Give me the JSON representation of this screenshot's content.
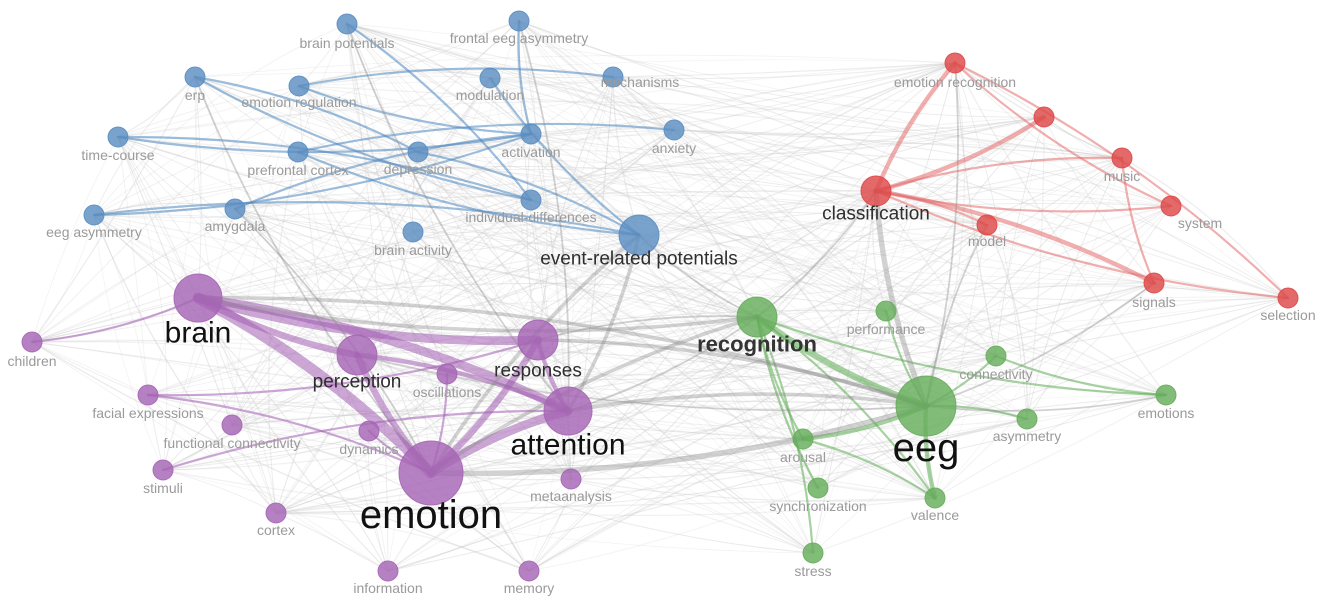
{
  "clusters": {
    "blue": {
      "color": "#5b8ec1",
      "edge_color": "#4d87bf"
    },
    "purple": {
      "color": "#a665b5",
      "edge_color": "#a25db2"
    },
    "green": {
      "color": "#67ad5b",
      "edge_color": "#5dab52"
    },
    "red": {
      "color": "#de4848",
      "edge_color": "#e46c6c"
    }
  },
  "nodes": [
    {
      "id": "brain_potentials",
      "label": "brain potentials",
      "cluster": "blue",
      "weight": 2,
      "label_emphasis": "minor"
    },
    {
      "id": "frontal_eeg_asymmetry",
      "label": "frontal eeg asymmetry",
      "cluster": "blue",
      "weight": 2,
      "label_emphasis": "minor"
    },
    {
      "id": "erp",
      "label": "erp",
      "cluster": "blue",
      "weight": 2,
      "label_emphasis": "minor"
    },
    {
      "id": "emotion_regulation",
      "label": "emotion regulation",
      "cluster": "blue",
      "weight": 2,
      "label_emphasis": "minor"
    },
    {
      "id": "modulation",
      "label": "modulation",
      "cluster": "blue",
      "weight": 2,
      "label_emphasis": "minor"
    },
    {
      "id": "mechanisms",
      "label": "mechanisms",
      "cluster": "blue",
      "weight": 2,
      "label_emphasis": "minor"
    },
    {
      "id": "time_course",
      "label": "time-course",
      "cluster": "blue",
      "weight": 2,
      "label_emphasis": "minor"
    },
    {
      "id": "prefrontal_cortex",
      "label": "prefrontal cortex",
      "cluster": "blue",
      "weight": 2,
      "label_emphasis": "minor"
    },
    {
      "id": "depression",
      "label": "depression",
      "cluster": "blue",
      "weight": 2,
      "label_emphasis": "minor"
    },
    {
      "id": "activation",
      "label": "activation",
      "cluster": "blue",
      "weight": 2,
      "label_emphasis": "minor"
    },
    {
      "id": "anxiety",
      "label": "anxiety",
      "cluster": "blue",
      "weight": 2,
      "label_emphasis": "minor"
    },
    {
      "id": "individual_differences",
      "label": "individual-differences",
      "cluster": "blue",
      "weight": 2,
      "label_emphasis": "minor"
    },
    {
      "id": "eeg_asymmetry",
      "label": "eeg asymmetry",
      "cluster": "blue",
      "weight": 2,
      "label_emphasis": "minor"
    },
    {
      "id": "amygdala",
      "label": "amygdala",
      "cluster": "blue",
      "weight": 2,
      "label_emphasis": "minor"
    },
    {
      "id": "brain_activity",
      "label": "brain activity",
      "cluster": "blue",
      "weight": 2,
      "label_emphasis": "minor"
    },
    {
      "id": "event_related_potentials",
      "label": "event-related potentials",
      "cluster": "blue",
      "weight": 4,
      "label_emphasis": "medium"
    },
    {
      "id": "emotion_recognition",
      "label": "emotion recognition",
      "cluster": "red",
      "weight": 2,
      "label_emphasis": "minor"
    },
    {
      "id": "red_unlabeled",
      "label": "",
      "cluster": "red",
      "weight": 2,
      "label_emphasis": "minor"
    },
    {
      "id": "music",
      "label": "music",
      "cluster": "red",
      "weight": 2,
      "label_emphasis": "minor"
    },
    {
      "id": "classification",
      "label": "classification",
      "cluster": "red",
      "weight": 3,
      "label_emphasis": "medium"
    },
    {
      "id": "system",
      "label": "system",
      "cluster": "red",
      "weight": 2,
      "label_emphasis": "minor"
    },
    {
      "id": "model",
      "label": "model",
      "cluster": "red",
      "weight": 2,
      "label_emphasis": "minor"
    },
    {
      "id": "signals",
      "label": "signals",
      "cluster": "red",
      "weight": 2,
      "label_emphasis": "minor"
    },
    {
      "id": "selection",
      "label": "selection",
      "cluster": "red",
      "weight": 2,
      "label_emphasis": "minor"
    },
    {
      "id": "brain",
      "label": "brain",
      "cluster": "purple",
      "weight": 5,
      "label_emphasis": "large"
    },
    {
      "id": "children",
      "label": "children",
      "cluster": "purple",
      "weight": 2,
      "label_emphasis": "minor"
    },
    {
      "id": "perception",
      "label": "perception",
      "cluster": "purple",
      "weight": 4,
      "label_emphasis": "medium"
    },
    {
      "id": "responses",
      "label": "responses",
      "cluster": "purple",
      "weight": 4,
      "label_emphasis": "medium"
    },
    {
      "id": "oscillations",
      "label": "oscillations",
      "cluster": "purple",
      "weight": 2,
      "label_emphasis": "minor"
    },
    {
      "id": "facial_expressions",
      "label": "facial expressions",
      "cluster": "purple",
      "weight": 2,
      "label_emphasis": "minor"
    },
    {
      "id": "functional_connectivity",
      "label": "functional connectivity",
      "cluster": "purple",
      "weight": 2,
      "label_emphasis": "minor"
    },
    {
      "id": "attention",
      "label": "attention",
      "cluster": "purple",
      "weight": 5,
      "label_emphasis": "large"
    },
    {
      "id": "dynamics",
      "label": "dynamics",
      "cluster": "purple",
      "weight": 2,
      "label_emphasis": "minor"
    },
    {
      "id": "stimuli",
      "label": "stimuli",
      "cluster": "purple",
      "weight": 2,
      "label_emphasis": "minor"
    },
    {
      "id": "emotion",
      "label": "emotion",
      "cluster": "purple",
      "weight": 7,
      "label_emphasis": "huge"
    },
    {
      "id": "metaanalysis",
      "label": "metaanalysis",
      "cluster": "purple",
      "weight": 2,
      "label_emphasis": "minor"
    },
    {
      "id": "cortex",
      "label": "cortex",
      "cluster": "purple",
      "weight": 2,
      "label_emphasis": "minor"
    },
    {
      "id": "information",
      "label": "information",
      "cluster": "purple",
      "weight": 2,
      "label_emphasis": "minor"
    },
    {
      "id": "memory",
      "label": "memory",
      "cluster": "purple",
      "weight": 2,
      "label_emphasis": "minor"
    },
    {
      "id": "recognition",
      "label": "recognition",
      "cluster": "green",
      "weight": 4,
      "label_emphasis": "bold"
    },
    {
      "id": "performance",
      "label": "performance",
      "cluster": "green",
      "weight": 2,
      "label_emphasis": "minor"
    },
    {
      "id": "connectivity",
      "label": "connectivity",
      "cluster": "green",
      "weight": 2,
      "label_emphasis": "minor"
    },
    {
      "id": "emotions",
      "label": "emotions",
      "cluster": "green",
      "weight": 2,
      "label_emphasis": "minor"
    },
    {
      "id": "eeg",
      "label": "eeg",
      "cluster": "green",
      "weight": 6,
      "label_emphasis": "huge"
    },
    {
      "id": "asymmetry",
      "label": "asymmetry",
      "cluster": "green",
      "weight": 2,
      "label_emphasis": "minor"
    },
    {
      "id": "arousal",
      "label": "arousal",
      "cluster": "green",
      "weight": 2,
      "label_emphasis": "minor"
    },
    {
      "id": "synchronization",
      "label": "synchronization",
      "cluster": "green",
      "weight": 2,
      "label_emphasis": "minor"
    },
    {
      "id": "valence",
      "label": "valence",
      "cluster": "green",
      "weight": 2,
      "label_emphasis": "minor"
    },
    {
      "id": "stress",
      "label": "stress",
      "cluster": "green",
      "weight": 2,
      "label_emphasis": "minor"
    }
  ],
  "strong_links": [
    {
      "source": "brain",
      "target": "emotion",
      "cluster": "purple",
      "strength": 5
    },
    {
      "source": "brain",
      "target": "responses",
      "cluster": "purple",
      "strength": 4
    },
    {
      "source": "brain",
      "target": "attention",
      "cluster": "purple",
      "strength": 4
    },
    {
      "source": "brain",
      "target": "perception",
      "cluster": "purple",
      "strength": 3
    },
    {
      "source": "emotion",
      "target": "attention",
      "cluster": "purple",
      "strength": 4
    },
    {
      "source": "emotion",
      "target": "responses",
      "cluster": "purple",
      "strength": 3
    },
    {
      "source": "emotion",
      "target": "perception",
      "cluster": "purple",
      "strength": 3
    },
    {
      "source": "responses",
      "target": "attention",
      "cluster": "purple",
      "strength": 2
    },
    {
      "source": "perception",
      "target": "attention",
      "cluster": "purple",
      "strength": 2
    },
    {
      "source": "facial_expressions",
      "target": "responses",
      "cluster": "purple",
      "strength": 1
    },
    {
      "source": "facial_expressions",
      "target": "emotion",
      "cluster": "purple",
      "strength": 1
    },
    {
      "source": "dynamics",
      "target": "emotion",
      "cluster": "purple",
      "strength": 1
    },
    {
      "source": "oscillations",
      "target": "emotion",
      "cluster": "purple",
      "strength": 1
    },
    {
      "source": "children",
      "target": "brain",
      "cluster": "purple",
      "strength": 1
    },
    {
      "source": "stimuli",
      "target": "attention",
      "cluster": "purple",
      "strength": 1
    },
    {
      "source": "recognition",
      "target": "eeg",
      "cluster": "green",
      "strength": 3
    },
    {
      "source": "eeg",
      "target": "arousal",
      "cluster": "green",
      "strength": 2
    },
    {
      "source": "eeg",
      "target": "valence",
      "cluster": "green",
      "strength": 2
    },
    {
      "source": "eeg",
      "target": "asymmetry",
      "cluster": "green",
      "strength": 1
    },
    {
      "source": "eeg",
      "target": "connectivity",
      "cluster": "green",
      "strength": 1
    },
    {
      "source": "eeg",
      "target": "performance",
      "cluster": "green",
      "strength": 1
    },
    {
      "source": "recognition",
      "target": "arousal",
      "cluster": "green",
      "strength": 1
    },
    {
      "source": "recognition",
      "target": "valence",
      "cluster": "green",
      "strength": 1
    },
    {
      "source": "recognition",
      "target": "synchronization",
      "cluster": "green",
      "strength": 1
    },
    {
      "source": "recognition",
      "target": "stress",
      "cluster": "green",
      "strength": 1
    },
    {
      "source": "recognition",
      "target": "emotions",
      "cluster": "green",
      "strength": 1
    },
    {
      "source": "arousal",
      "target": "valence",
      "cluster": "green",
      "strength": 1
    },
    {
      "source": "connectivity",
      "target": "emotions",
      "cluster": "green",
      "strength": 1
    },
    {
      "source": "classification",
      "target": "emotion_recognition",
      "cluster": "red",
      "strength": 2
    },
    {
      "source": "classification",
      "target": "red_unlabeled",
      "cluster": "red",
      "strength": 2
    },
    {
      "source": "classification",
      "target": "signals",
      "cluster": "red",
      "strength": 2
    },
    {
      "source": "classification",
      "target": "selection",
      "cluster": "red",
      "strength": 1
    },
    {
      "source": "classification",
      "target": "music",
      "cluster": "red",
      "strength": 1
    },
    {
      "source": "classification",
      "target": "system",
      "cluster": "red",
      "strength": 1
    },
    {
      "source": "classification",
      "target": "model",
      "cluster": "red",
      "strength": 1
    },
    {
      "source": "emotion_recognition",
      "target": "system",
      "cluster": "red",
      "strength": 1
    },
    {
      "source": "emotion_recognition",
      "target": "selection",
      "cluster": "red",
      "strength": 1
    },
    {
      "source": "music",
      "target": "signals",
      "cluster": "red",
      "strength": 1
    },
    {
      "source": "time_course",
      "target": "individual_differences",
      "cluster": "blue",
      "strength": 1
    },
    {
      "source": "time_course",
      "target": "activation",
      "cluster": "blue",
      "strength": 1
    },
    {
      "source": "eeg_asymmetry",
      "target": "event_related_potentials",
      "cluster": "blue",
      "strength": 1
    },
    {
      "source": "eeg_asymmetry",
      "target": "activation",
      "cluster": "blue",
      "strength": 1
    },
    {
      "source": "brain_potentials",
      "target": "individual_differences",
      "cluster": "blue",
      "strength": 1
    },
    {
      "source": "erp",
      "target": "individual_differences",
      "cluster": "blue",
      "strength": 1
    },
    {
      "source": "erp",
      "target": "depression",
      "cluster": "blue",
      "strength": 1
    },
    {
      "source": "prefrontal_cortex",
      "target": "event_related_potentials",
      "cluster": "blue",
      "strength": 1
    },
    {
      "source": "prefrontal_cortex",
      "target": "anxiety",
      "cluster": "blue",
      "strength": 1
    },
    {
      "source": "emotion_regulation",
      "target": "activation",
      "cluster": "blue",
      "strength": 1
    },
    {
      "source": "emotion_regulation",
      "target": "mechanisms",
      "cluster": "blue",
      "strength": 1
    },
    {
      "source": "modulation",
      "target": "event_related_potentials",
      "cluster": "blue",
      "strength": 1
    },
    {
      "source": "depression",
      "target": "event_related_potentials",
      "cluster": "blue",
      "strength": 1
    },
    {
      "source": "frontal_eeg_asymmetry",
      "target": "activation",
      "cluster": "blue",
      "strength": 1
    },
    {
      "source": "amygdala",
      "target": "activation",
      "cluster": "blue",
      "strength": 1
    },
    {
      "source": "emotion",
      "target": "eeg",
      "cluster": "gray",
      "strength": 3
    },
    {
      "source": "attention",
      "target": "eeg",
      "cluster": "gray",
      "strength": 2
    },
    {
      "source": "brain",
      "target": "recognition",
      "cluster": "gray",
      "strength": 2
    },
    {
      "source": "responses",
      "target": "eeg",
      "cluster": "gray",
      "strength": 2
    },
    {
      "source": "perception",
      "target": "eeg",
      "cluster": "gray",
      "strength": 1
    },
    {
      "source": "brain",
      "target": "eeg",
      "cluster": "gray",
      "strength": 2
    },
    {
      "source": "classification",
      "target": "eeg",
      "cluster": "gray",
      "strength": 3
    },
    {
      "source": "classification",
      "target": "recognition",
      "cluster": "gray",
      "strength": 1
    },
    {
      "source": "event_related_potentials",
      "target": "emotion",
      "cluster": "gray",
      "strength": 2
    },
    {
      "source": "event_related_potentials",
      "target": "attention",
      "cluster": "gray",
      "strength": 2
    },
    {
      "source": "event_related_potentials",
      "target": "recognition",
      "cluster": "gray",
      "strength": 1
    },
    {
      "source": "emotion",
      "target": "recognition",
      "cluster": "gray",
      "strength": 2
    },
    {
      "source": "attention",
      "target": "recognition",
      "cluster": "gray",
      "strength": 1
    },
    {
      "source": "responses",
      "target": "recognition",
      "cluster": "gray",
      "strength": 1
    },
    {
      "source": "erp",
      "target": "emotion",
      "cluster": "gray",
      "strength": 1
    },
    {
      "source": "amygdala",
      "target": "emotion",
      "cluster": "gray",
      "strength": 1
    },
    {
      "source": "brain_potentials",
      "target": "attention",
      "cluster": "gray",
      "strength": 1
    },
    {
      "source": "frontal_eeg_asymmetry",
      "target": "attention",
      "cluster": "gray",
      "strength": 1
    },
    {
      "source": "eeg",
      "target": "emotions",
      "cluster": "gray",
      "strength": 1
    },
    {
      "source": "signals",
      "target": "eeg",
      "cluster": "gray",
      "strength": 1
    },
    {
      "source": "model",
      "target": "eeg",
      "cluster": "gray",
      "strength": 1
    },
    {
      "source": "emotion_recognition",
      "target": "eeg",
      "cluster": "gray",
      "strength": 1
    }
  ]
}
